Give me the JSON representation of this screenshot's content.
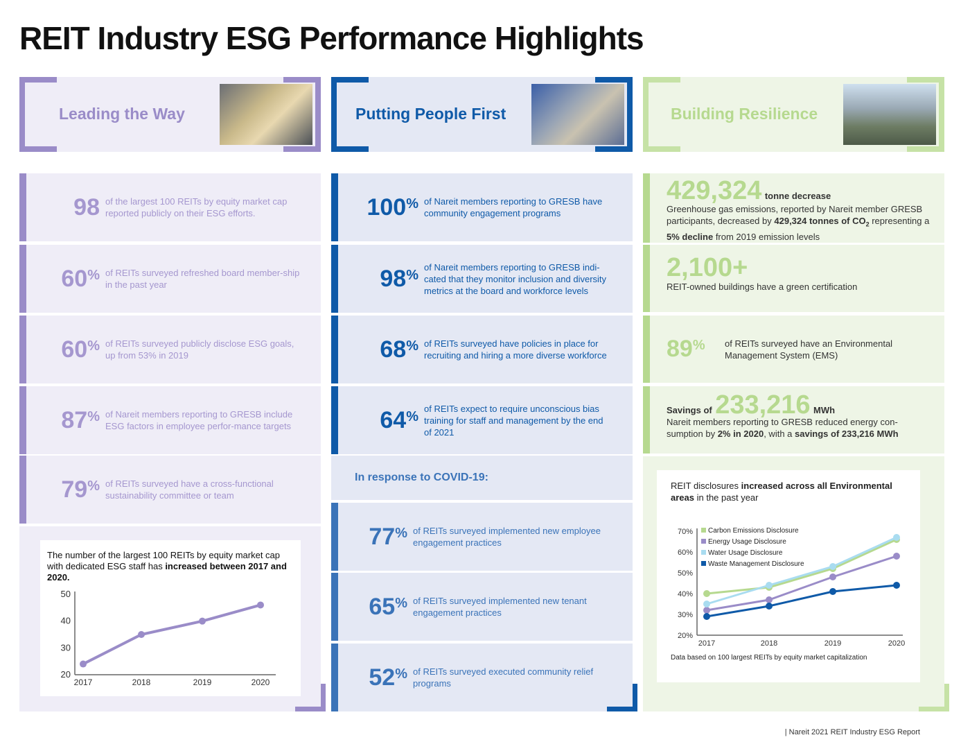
{
  "title": "REIT Industry ESG Performance Highlights",
  "colors": {
    "purple": "#9a8cc8",
    "purple_bg": "#efedf7",
    "blue": "#0f5aa8",
    "blue_bg": "#e4e8f4",
    "green": "#b6d98f",
    "green_bg": "#eef5e6"
  },
  "col1": {
    "header": "Leading the Way",
    "stats": [
      {
        "num": "98",
        "unit": "",
        "text": "of the largest 100 REITs by equity market cap reported publicly on their ESG efforts."
      },
      {
        "num": "60",
        "unit": "%",
        "text": "of REITs surveyed refreshed board member-ship in the past year"
      },
      {
        "num": "60",
        "unit": "%",
        "text": "of REITs surveyed publicly disclose ESG goals, up from 53% in 2019"
      },
      {
        "num": "87",
        "unit": "%",
        "text": "of Nareit members reporting to GRESB include ESG factors in employee perfor-mance targets"
      },
      {
        "num": "79",
        "unit": "%",
        "text": "of REITs surveyed have a cross-functional sustainability committee or team"
      }
    ]
  },
  "col2": {
    "header": "Putting People First",
    "stats": [
      {
        "num": "100",
        "unit": "%",
        "text": "of Nareit members reporting to GRESB have community engagement programs"
      },
      {
        "num": "98",
        "unit": "%",
        "text": "of Nareit members reporting to GRESB indi-cated that they monitor inclusion and diversity metrics at the board and workforce levels"
      },
      {
        "num": "68",
        "unit": "%",
        "text": "of REITs surveyed have policies in place for recruiting and hiring a more diverse workforce"
      },
      {
        "num": "64",
        "unit": "%",
        "text": "of REITs expect to require unconscious bias training for staff and management by the end of 2021"
      }
    ],
    "covid_heading": "In response to COVID-19:",
    "covid": [
      {
        "num": "77",
        "unit": "%",
        "text": "of REITs surveyed implemented new employee engagement practices"
      },
      {
        "num": "65",
        "unit": "%",
        "text": "of REITs surveyed implemented new tenant engagement practices"
      },
      {
        "num": "52",
        "unit": "%",
        "text": "of REITs surveyed executed community relief programs"
      }
    ]
  },
  "col3": {
    "header": "Building Resilience",
    "ghg": {
      "num": "429,324",
      "unit": "tonne decrease",
      "t1": "Greenhouse gas emissions, reported by Nareit member GRESB participants, decreased by ",
      "b1": "429,324 tonnes of CO",
      "sub": "2",
      "t2": " representing a ",
      "b2": "5% decline",
      "t3": " from 2019 emission levels"
    },
    "cert": {
      "num": "2,100+",
      "text": "REIT-owned buildings have a green certification"
    },
    "ems": {
      "num": "89",
      "unit": "%",
      "text": "of REITs surveyed have an Environmental Management System (EMS)"
    },
    "energy": {
      "pre": "Savings of",
      "num": "233,216",
      "unit": "MWh",
      "t1": "Nareit members reporting to GRESB reduced energy con-sumption by ",
      "b1": "2% in 2020",
      "t2": ", with a ",
      "b2": "savings of 233,216 MWh"
    }
  },
  "footer": "| Nareit  2021 REIT Industry ESG Report",
  "chart_data": [
    {
      "type": "line",
      "title_plain": "The number of the largest 100 REITs by equity market cap with dedicated ESG staff has ",
      "title_bold": "increased between 2017 and 2020.",
      "categories": [
        "2017",
        "2018",
        "2019",
        "2020"
      ],
      "values": [
        24,
        35,
        40,
        46
      ],
      "ylim": [
        20,
        50
      ],
      "yticks": [
        "20",
        "30",
        "40",
        "50"
      ],
      "color": "#9a8cc8"
    },
    {
      "type": "line",
      "title_plain1": "REIT disclosures ",
      "title_bold": "increased across all Environmental areas",
      "title_plain2": " in the past year",
      "categories": [
        "2017",
        "2018",
        "2019",
        "2020"
      ],
      "ylim": [
        20,
        70
      ],
      "yticks": [
        "20%",
        "30%",
        "40%",
        "50%",
        "60%",
        "70%"
      ],
      "legend": "top-left",
      "note": "Data based on 100 largest REITs by equity market capitalization",
      "series": [
        {
          "name": "Carbon Emissions Disclosure",
          "color": "#b6d98f",
          "values": [
            40,
            43,
            52,
            66
          ]
        },
        {
          "name": "Energy Usage Disclosure",
          "color": "#9a8cc8",
          "values": [
            32,
            37,
            48,
            58
          ]
        },
        {
          "name": "Water Usage Disclosure",
          "color": "#a9dcf0",
          "values": [
            35,
            44,
            53,
            67
          ]
        },
        {
          "name": "Waste Management Disclosure",
          "color": "#0f5aa8",
          "values": [
            29,
            34,
            41,
            44
          ]
        }
      ]
    }
  ]
}
